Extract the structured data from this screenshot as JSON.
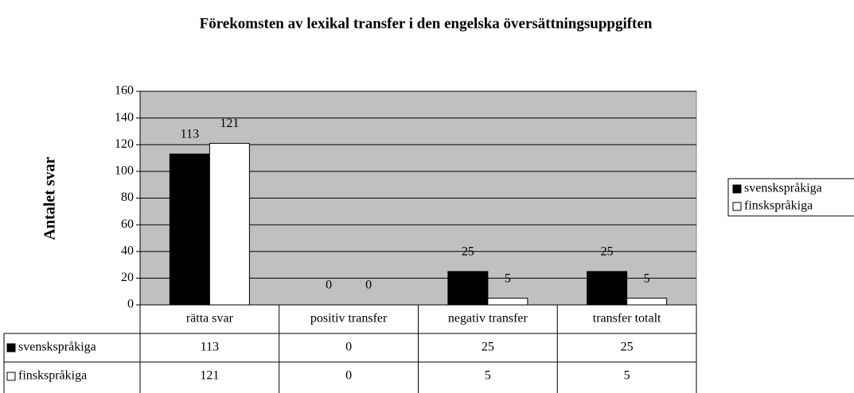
{
  "chart_data": {
    "type": "bar",
    "title": "Förekomsten av lexikal transfer i den engelska översättningsuppgiften",
    "y_label": "Antalet svar",
    "categories": [
      "rätta svar",
      "positiv transfer",
      "negativ transfer",
      "transfer totalt"
    ],
    "series": [
      {
        "name": "svenskspråkiga",
        "color": "#000000",
        "values": [
          113,
          0,
          25,
          25
        ]
      },
      {
        "name": "finskspråkiga",
        "color": "#ffffff",
        "values": [
          121,
          0,
          5,
          5
        ]
      }
    ],
    "ylim": [
      0,
      160
    ],
    "yticks": [
      0,
      20,
      40,
      60,
      80,
      100,
      120,
      140,
      160
    ],
    "grid": true,
    "legend": "right",
    "plot_background": "#c0c0c0"
  }
}
